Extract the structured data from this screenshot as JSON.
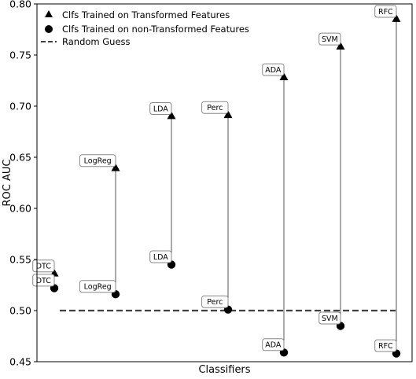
{
  "chart_data": {
    "type": "scatter",
    "title": "",
    "xlabel": "Classifiers",
    "ylabel": "ROC AUC",
    "ylim": [
      0.45,
      0.8
    ],
    "yticks": [
      "0.45",
      "0.50",
      "0.55",
      "0.60",
      "0.65",
      "0.70",
      "0.75",
      "0.80"
    ],
    "x_ticks_shown": false,
    "grid": false,
    "legend_position": "top-left",
    "reference_line": {
      "name": "Random Guess",
      "value": 0.5,
      "style": "dashed",
      "color": "#404040"
    },
    "series": [
      {
        "name": "Clfs Trained on Transformed Features",
        "marker": "triangle",
        "color": "#000000",
        "points": [
          {
            "label": "DTC",
            "value": 0.536
          },
          {
            "label": "LogReg",
            "value": 0.639
          },
          {
            "label": "LDA",
            "value": 0.69
          },
          {
            "label": "Perc",
            "value": 0.691
          },
          {
            "label": "ADA",
            "value": 0.728
          },
          {
            "label": "SVM",
            "value": 0.758
          },
          {
            "label": "RFC",
            "value": 0.785
          }
        ]
      },
      {
        "name": "Clfs Trained on non-Transformed Features",
        "marker": "circle",
        "color": "#000000",
        "points": [
          {
            "label": "DTC",
            "value": 0.522
          },
          {
            "label": "LogReg",
            "value": 0.516
          },
          {
            "label": "LDA",
            "value": 0.545
          },
          {
            "label": "Perc",
            "value": 0.501
          },
          {
            "label": "ADA",
            "value": 0.459
          },
          {
            "label": "SVM",
            "value": 0.485
          },
          {
            "label": "RFC",
            "value": 0.458
          }
        ]
      }
    ],
    "connector_color": "#555555",
    "annotation_border_color": "#888888"
  }
}
